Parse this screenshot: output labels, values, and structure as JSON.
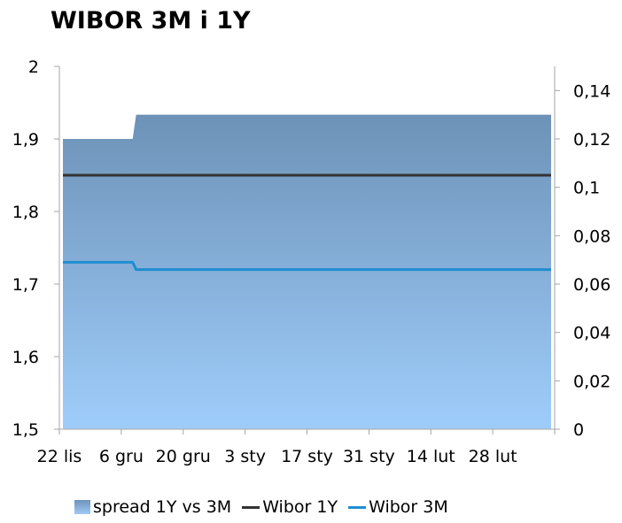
{
  "title": "WIBOR 3M i 1Y",
  "colors": {
    "area_top": "#6d92b7",
    "area_bottom": "#9fcdfb",
    "wibor_1y": "#333333",
    "wibor_3m": "#1f8dd0",
    "axis": "#a6a6a6"
  },
  "chart_data": {
    "type": "line",
    "title": "WIBOR 3M i 1Y",
    "x_tick_labels": [
      "22 lis",
      "6 gru",
      "20 gru",
      "3 sty",
      "17 sty",
      "31 sty",
      "14 lut",
      "28 lut"
    ],
    "x_points": 8,
    "y_left": {
      "ticks": [
        "1,5",
        "1,6",
        "1,7",
        "1,8",
        "1,9",
        "2"
      ],
      "ylim": [
        1.5,
        2.0
      ]
    },
    "y_right": {
      "ticks": [
        "0",
        "0,02",
        "0,04",
        "0,06",
        "0,08",
        "0,1",
        "0,12",
        "0,14"
      ],
      "ylim": [
        0,
        0.15
      ]
    },
    "series": [
      {
        "name": "spread 1Y vs 3M",
        "type": "area",
        "axis": "right",
        "points": [
          [
            0,
            0.12
          ],
          [
            1,
            0.12
          ],
          [
            1.05,
            0.13
          ],
          [
            7,
            0.13
          ]
        ]
      },
      {
        "name": "Wibor 1Y",
        "type": "line",
        "axis": "left",
        "points": [
          [
            0,
            1.85
          ],
          [
            7,
            1.85
          ]
        ]
      },
      {
        "name": "Wibor 3M",
        "type": "line",
        "axis": "left",
        "points": [
          [
            0,
            1.73
          ],
          [
            1,
            1.73
          ],
          [
            1.05,
            1.72
          ],
          [
            7,
            1.72
          ]
        ]
      }
    ],
    "legend_position": "bottom",
    "grid": false
  }
}
